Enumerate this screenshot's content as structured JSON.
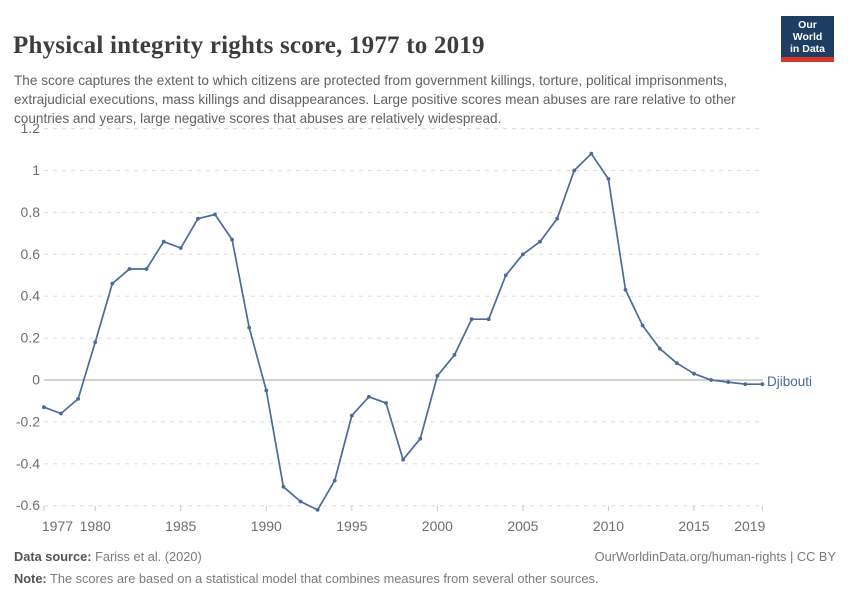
{
  "header": {
    "title": "Physical integrity rights score, 1977 to 2019",
    "subtitle": "The score captures the extent to which citizens are protected from government killings, torture, political imprisonments, extrajudicial executions, mass killings and disappearances. Large positive scores mean abuses are rare relative to other countries and years, large negative scores that abuses are relatively widespread."
  },
  "logo": {
    "line1": "Our World",
    "line2": "in Data",
    "bg_color": "#1d3d63",
    "accent_color": "#d8352b"
  },
  "chart_data": {
    "type": "line",
    "title": "Physical integrity rights score, 1977 to 2019",
    "x": [
      1977,
      1978,
      1979,
      1980,
      1981,
      1982,
      1983,
      1984,
      1985,
      1986,
      1987,
      1988,
      1989,
      1990,
      1991,
      1992,
      1993,
      1994,
      1995,
      1996,
      1997,
      1998,
      1999,
      2000,
      2001,
      2002,
      2003,
      2004,
      2005,
      2006,
      2007,
      2008,
      2009,
      2010,
      2011,
      2012,
      2013,
      2014,
      2015,
      2016,
      2017,
      2018,
      2019
    ],
    "series": [
      {
        "name": "Djibouti",
        "color": "#4c6a9c",
        "values": [
          -0.13,
          -0.16,
          -0.09,
          0.18,
          0.46,
          0.53,
          0.53,
          0.66,
          0.63,
          0.77,
          0.79,
          0.67,
          0.25,
          -0.05,
          -0.51,
          -0.58,
          -0.62,
          -0.48,
          -0.17,
          -0.08,
          -0.11,
          -0.38,
          -0.28,
          0.02,
          0.12,
          0.29,
          0.29,
          0.5,
          0.6,
          0.66,
          0.77,
          1.0,
          1.08,
          0.96,
          0.43,
          0.26,
          0.15,
          0.08,
          0.03,
          0.0,
          -0.01,
          -0.02,
          -0.02
        ]
      }
    ],
    "xlabel": "",
    "ylabel": "",
    "ylim": [
      -0.6,
      1.2
    ],
    "xlim": [
      1977,
      2019
    ],
    "yticks": [
      1.2,
      1,
      0.8,
      0.6,
      0.4,
      0.2,
      0,
      -0.2,
      -0.4,
      -0.6
    ],
    "ytick_labels": [
      "1.2",
      "1",
      "0.8",
      "0.6",
      "0.4",
      "0.2",
      "0",
      "-0.2",
      "-0.4",
      "-0.6"
    ],
    "xticks": [
      1977,
      1980,
      1985,
      1990,
      1995,
      2000,
      2005,
      2010,
      2015,
      2019
    ],
    "grid": "horizontal-dashed",
    "zero_line": true,
    "legend_position": "end-of-line-label"
  },
  "style_colors": {
    "line": "#4c6a9c",
    "gridline": "#dedede",
    "zero_line": "#a3a3a3",
    "tick_label": "#6f6f6f",
    "tick_mark": "#c9c9c9"
  },
  "footer": {
    "datasource_label": "Data source:",
    "datasource_value": " Fariss et al. (2020)",
    "citation": "OurWorldinData.org/human-rights | CC BY",
    "note_label": "Note:",
    "note_value": " The scores are based on a statistical model that combines measures from several other sources."
  }
}
